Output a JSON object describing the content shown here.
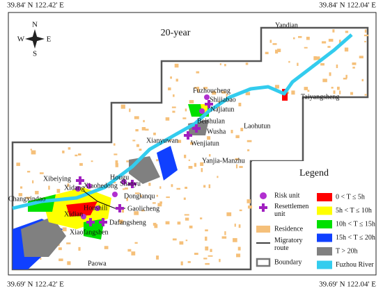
{
  "corners": {
    "top_left": "39.84' N 122.42' E",
    "top_right": "39.84' N 122.04' E",
    "bottom_left": "39.69' N 122.42' E",
    "bottom_right": "39.69' N 122.04' E"
  },
  "title": "20-year",
  "compass": {
    "n": "N",
    "e": "E",
    "s": "S",
    "w": "W"
  },
  "places": [
    "Yandian",
    "Fuzhoucheng",
    "Shijiabao",
    "Najiatun",
    "Taiyangsheng",
    "Beishulan",
    "Wusha",
    "Laohutun",
    "Wenjiatun",
    "Xianyuwan",
    "Yanjia-Manzhu",
    "Xibeiying",
    "Xidang",
    "Hougu",
    "Xiaohedong",
    "Shanyu",
    "Donglanqu",
    "Changxindao",
    "Houshili",
    "Gaolicheng",
    "Xidian",
    "Dafangsheng",
    "Xiaofangshen",
    "Paowa"
  ],
  "legend": {
    "title": "Legend",
    "symbols": [
      [
        "Risk unit"
      ],
      [
        "Resettlemen",
        "unit"
      ],
      [
        "Residence"
      ],
      [
        "Migratory",
        "route"
      ],
      [
        "Boundary"
      ]
    ],
    "classes": [
      {
        "label": "0 < T ≤ 5h",
        "color": "#ff0000"
      },
      {
        "label": "5h < T ≤ 10h",
        "color": "#ffff00"
      },
      {
        "label": "10h < T ≤ 15h",
        "color": "#00e000"
      },
      {
        "label": "15h < T ≤ 20h",
        "color": "#1040ff"
      },
      {
        "label": "T > 20h",
        "color": "#808080"
      },
      {
        "label": "Fuzhou River",
        "color": "#33ccee"
      }
    ]
  }
}
